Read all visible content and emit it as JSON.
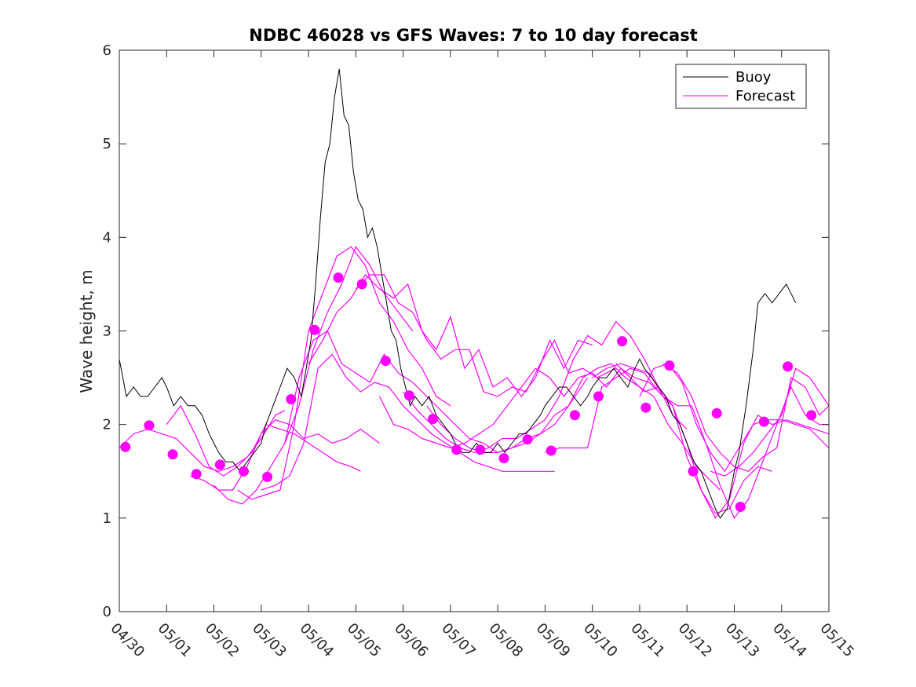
{
  "chart_data": {
    "type": "line",
    "title": "NDBC 46028 vs GFS Waves: 7 to 10 day forecast",
    "xlabel": "",
    "ylabel": "Wave height, m",
    "xlim": [
      0,
      15
    ],
    "ylim": [
      0,
      6
    ],
    "x_ticks": [
      "04/30",
      "05/01",
      "05/02",
      "05/03",
      "05/04",
      "05/05",
      "05/06",
      "05/07",
      "05/08",
      "05/09",
      "05/10",
      "05/11",
      "05/12",
      "05/13",
      "05/14",
      "05/15"
    ],
    "y_ticks": [
      0,
      1,
      2,
      3,
      4,
      5,
      6
    ],
    "x_unit": "days after 04/30 00:00",
    "grid": false,
    "legend": {
      "placement": "top-right",
      "entries": [
        "Buoy",
        "Forecast"
      ]
    },
    "colors": {
      "buoy": "#000000",
      "forecast": "#ff00ff"
    },
    "buoy": {
      "name": "Buoy",
      "x": [
        0,
        0.15,
        0.3,
        0.45,
        0.6,
        0.75,
        0.9,
        1.0,
        1.15,
        1.3,
        1.45,
        1.6,
        1.75,
        1.9,
        2.0,
        2.1,
        2.25,
        2.4,
        2.55,
        2.7,
        2.85,
        3.0,
        3.1,
        3.25,
        3.4,
        3.55,
        3.7,
        3.85,
        3.95,
        4.05,
        4.15,
        4.25,
        4.35,
        4.45,
        4.55,
        4.65,
        4.75,
        4.85,
        4.95,
        5.05,
        5.15,
        5.25,
        5.35,
        5.45,
        5.55,
        5.65,
        5.75,
        5.85,
        5.95,
        6.05,
        6.15,
        6.25,
        6.4,
        6.55,
        6.7,
        6.85,
        7.0,
        7.1,
        7.25,
        7.4,
        7.55,
        7.7,
        7.85,
        8.0,
        8.15,
        8.3,
        8.45,
        8.6,
        8.75,
        8.9,
        9.0,
        9.15,
        9.3,
        9.45,
        9.6,
        9.75,
        9.9,
        10.0,
        10.15,
        10.3,
        10.45,
        10.6,
        10.75,
        10.9,
        11.0,
        11.1,
        11.25,
        11.4,
        11.55,
        11.7,
        11.85,
        12.0,
        12.15,
        12.3,
        12.45,
        12.6,
        12.7,
        12.85,
        13.0,
        13.1,
        13.25,
        13.4,
        13.5,
        13.65,
        13.8,
        13.95,
        14.1,
        14.2,
        14.3
      ],
      "y": [
        2.7,
        2.3,
        2.4,
        2.3,
        2.3,
        2.4,
        2.5,
        2.4,
        2.2,
        2.3,
        2.2,
        2.2,
        2.1,
        1.9,
        1.8,
        1.7,
        1.6,
        1.6,
        1.5,
        1.6,
        1.7,
        1.8,
        2.0,
        2.2,
        2.4,
        2.6,
        2.5,
        2.3,
        2.6,
        2.9,
        3.5,
        4.2,
        4.8,
        5.0,
        5.5,
        5.8,
        5.3,
        5.2,
        4.7,
        4.4,
        4.3,
        4.0,
        4.1,
        3.9,
        3.6,
        3.3,
        3.0,
        2.9,
        2.6,
        2.4,
        2.2,
        2.3,
        2.2,
        2.3,
        2.1,
        2.0,
        1.9,
        1.8,
        1.7,
        1.7,
        1.8,
        1.7,
        1.7,
        1.8,
        1.7,
        1.8,
        1.9,
        1.9,
        2.0,
        2.1,
        2.2,
        2.3,
        2.4,
        2.4,
        2.3,
        2.2,
        2.3,
        2.4,
        2.5,
        2.5,
        2.6,
        2.5,
        2.4,
        2.6,
        2.7,
        2.6,
        2.5,
        2.4,
        2.3,
        2.1,
        2.0,
        1.8,
        1.6,
        1.5,
        1.3,
        1.1,
        1.0,
        1.1,
        1.5,
        1.7,
        2.2,
        2.8,
        3.3,
        3.4,
        3.3,
        3.4,
        3.5,
        3.4,
        3.3
      ]
    },
    "forecast_series": [
      {
        "x": [
          0,
          0.3,
          0.6,
          0.9,
          1.2,
          1.5,
          1.8,
          2.1,
          2.4,
          2.7,
          3.0,
          3.3,
          3.5
        ],
        "y": [
          1.75,
          1.9,
          1.95,
          1.9,
          1.85,
          1.7,
          1.55,
          1.5,
          1.55,
          1.65,
          1.85,
          2.1,
          2.15
        ]
      },
      {
        "x": [
          1.0,
          1.3,
          1.6,
          1.9,
          2.2,
          2.5,
          2.8,
          3.1,
          3.4,
          3.7,
          4.0,
          4.3,
          4.6,
          4.9,
          5.1
        ],
        "y": [
          2.0,
          2.2,
          1.9,
          1.55,
          1.45,
          1.55,
          1.7,
          2.0,
          1.95,
          1.9,
          1.8,
          1.7,
          1.6,
          1.55,
          1.5
        ]
      },
      {
        "x": [
          1.5,
          1.8,
          2.1,
          2.4,
          2.7,
          3.0,
          3.3,
          3.6,
          3.9,
          4.2,
          4.5,
          4.8,
          5.1,
          5.5
        ],
        "y": [
          1.45,
          1.4,
          1.3,
          1.3,
          1.55,
          1.9,
          2.05,
          2.0,
          1.85,
          1.9,
          1.8,
          1.85,
          1.95,
          1.8
        ]
      },
      {
        "x": [
          2.0,
          2.3,
          2.6,
          2.9,
          3.2,
          3.5,
          3.8,
          4.1,
          4.4,
          4.7,
          5.0,
          5.3,
          5.6,
          5.9,
          6.2
        ],
        "y": [
          1.35,
          1.2,
          1.15,
          1.3,
          1.55,
          1.8,
          2.2,
          2.8,
          3.2,
          3.5,
          3.9,
          3.7,
          3.4,
          3.2,
          3.0
        ]
      },
      {
        "x": [
          2.5,
          2.8,
          3.1,
          3.4,
          3.7,
          4.0,
          4.3,
          4.6,
          4.9,
          5.2,
          5.5,
          5.8,
          6.1,
          6.4,
          6.7,
          7.0
        ],
        "y": [
          1.3,
          1.2,
          1.25,
          1.3,
          2.0,
          3.0,
          3.4,
          3.8,
          3.9,
          3.7,
          3.3,
          3.1,
          2.8,
          2.6,
          2.3,
          2.2
        ]
      },
      {
        "x": [
          3.0,
          3.3,
          3.6,
          3.9,
          4.2,
          4.5,
          4.8,
          5.1,
          5.4,
          5.7,
          6.0,
          6.3,
          6.6,
          6.9,
          7.2,
          7.5,
          7.8,
          8.1,
          8.5,
          8.9,
          9.2
        ],
        "y": [
          1.3,
          1.35,
          1.45,
          1.8,
          2.6,
          2.75,
          2.5,
          2.35,
          2.45,
          2.4,
          2.2,
          2.05,
          1.9,
          1.8,
          1.7,
          1.6,
          1.55,
          1.5,
          1.5,
          1.5,
          1.5
        ]
      },
      {
        "x": [
          3.5,
          3.8,
          4.1,
          4.4,
          4.7,
          5.0,
          5.3,
          5.6,
          5.9,
          6.2,
          6.5,
          6.8,
          7.1,
          7.4,
          7.7,
          8.0,
          8.3,
          8.6,
          8.9,
          9.2,
          9.5,
          9.9
        ],
        "y": [
          1.8,
          2.5,
          2.9,
          3.0,
          2.65,
          2.55,
          2.45,
          2.75,
          2.55,
          2.45,
          2.3,
          2.15,
          2.0,
          1.85,
          1.8,
          1.7,
          1.75,
          1.85,
          1.9,
          2.0,
          2.2,
          2.5
        ]
      },
      {
        "x": [
          4.0,
          4.3,
          4.6,
          4.9,
          5.2,
          5.5,
          5.8,
          6.1,
          6.4,
          6.7,
          7.0,
          7.3,
          7.6,
          7.9,
          8.2,
          8.5,
          8.8,
          9.1,
          9.4,
          9.7,
          10.0
        ],
        "y": [
          2.65,
          2.9,
          3.2,
          3.35,
          3.6,
          3.45,
          3.35,
          3.5,
          3.0,
          2.8,
          3.15,
          2.6,
          2.8,
          2.4,
          2.5,
          2.3,
          2.5,
          2.9,
          2.6,
          2.9,
          2.85
        ]
      },
      {
        "x": [
          5.0,
          5.3,
          5.6,
          5.9,
          6.2,
          6.5,
          6.8,
          7.1,
          7.4,
          7.7,
          8.0,
          8.3,
          8.6,
          8.9,
          9.2,
          9.5,
          9.8,
          10.1,
          10.5
        ],
        "y": [
          3.45,
          3.6,
          3.6,
          3.3,
          3.2,
          2.9,
          2.7,
          2.8,
          2.8,
          2.35,
          2.3,
          2.4,
          2.35,
          2.65,
          2.9,
          2.55,
          2.6,
          2.5,
          2.6
        ]
      },
      {
        "x": [
          5.5,
          5.8,
          6.1,
          6.4,
          6.7,
          7.0,
          7.3,
          7.6,
          7.9,
          8.2,
          8.5,
          8.8,
          9.1,
          9.4,
          9.7,
          10.0,
          10.3,
          10.6,
          10.9,
          11.2,
          11.5
        ],
        "y": [
          2.3,
          2.0,
          1.95,
          1.85,
          1.8,
          1.75,
          1.8,
          1.9,
          2.0,
          2.2,
          2.4,
          2.6,
          2.5,
          2.3,
          2.5,
          2.55,
          2.4,
          2.6,
          2.5,
          2.45,
          2.3
        ]
      },
      {
        "x": [
          6.0,
          6.3,
          6.6,
          6.9,
          7.2,
          7.5,
          7.8,
          8.1,
          8.4,
          8.7,
          9.0,
          9.3,
          9.6,
          9.9,
          10.2,
          10.5,
          10.8,
          11.1,
          11.4,
          11.7,
          12.0
        ],
        "y": [
          2.35,
          2.15,
          2.0,
          1.85,
          1.75,
          1.7,
          1.75,
          1.85,
          1.85,
          1.95,
          2.05,
          2.3,
          2.7,
          2.95,
          2.85,
          3.1,
          2.95,
          2.7,
          2.4,
          2.1,
          1.95
        ]
      },
      {
        "x": [
          6.5,
          6.8,
          7.1,
          7.4,
          7.7,
          8.0,
          8.3,
          8.6,
          8.9,
          9.2,
          9.5,
          9.8,
          10.1,
          10.4,
          10.7,
          11.0,
          11.3,
          11.6,
          11.9,
          12.2,
          12.5,
          12.7
        ],
        "y": [
          2.2,
          2.0,
          1.85,
          1.75,
          1.7,
          1.7,
          1.75,
          1.8,
          1.9,
          2.1,
          2.2,
          2.5,
          2.6,
          2.65,
          2.5,
          2.4,
          2.3,
          2.0,
          1.8,
          1.55,
          1.4,
          1.3
        ]
      },
      {
        "x": [
          9.0,
          9.3,
          9.6,
          9.9,
          10.2,
          10.5,
          10.8,
          11.1,
          11.4,
          11.7,
          12.0,
          12.3,
          12.6,
          12.9,
          13.2,
          13.5,
          13.8
        ],
        "y": [
          1.7,
          1.75,
          1.75,
          1.75,
          2.4,
          2.5,
          2.6,
          2.55,
          2.35,
          2.2,
          1.8,
          1.3,
          1.05,
          1.1,
          1.4,
          1.55,
          1.5
        ]
      },
      {
        "x": [
          10.0,
          10.3,
          10.6,
          10.9,
          11.2,
          11.5,
          11.8,
          12.1,
          12.4,
          12.7,
          13.0,
          13.3,
          13.6,
          13.9,
          14.2,
          14.5,
          14.8,
          15.0
        ],
        "y": [
          2.5,
          2.6,
          2.65,
          2.6,
          2.55,
          2.3,
          2.2,
          2.2,
          1.8,
          1.35,
          1.0,
          1.2,
          1.6,
          2.0,
          2.4,
          2.1,
          2.0,
          2.0
        ]
      },
      {
        "x": [
          10.5,
          10.8,
          11.1,
          11.4,
          11.7,
          12.0,
          12.3,
          12.6,
          12.9,
          13.2,
          13.5,
          13.8,
          14.1,
          14.4,
          14.7,
          15.0
        ],
        "y": [
          2.65,
          2.5,
          2.35,
          2.4,
          2.2,
          1.65,
          1.3,
          1.0,
          1.2,
          1.8,
          2.1,
          2.0,
          2.05,
          2.0,
          1.95,
          1.9
        ]
      },
      {
        "x": [
          11.0,
          11.3,
          11.6,
          11.9,
          12.2,
          12.5,
          12.8,
          13.1,
          13.4,
          13.7,
          14.0,
          14.3,
          14.6,
          15.0
        ],
        "y": [
          2.3,
          2.6,
          2.65,
          2.45,
          2.0,
          1.7,
          1.5,
          1.75,
          2.0,
          2.05,
          2.05,
          2.0,
          1.95,
          1.75
        ]
      },
      {
        "x": [
          11.5,
          11.8,
          12.1,
          12.4,
          12.7,
          13.0,
          13.3,
          13.6,
          13.9,
          14.2,
          14.5,
          14.8,
          15.0
        ],
        "y": [
          2.65,
          2.55,
          2.3,
          1.9,
          1.7,
          1.55,
          1.5,
          1.65,
          1.75,
          2.5,
          2.4,
          2.1,
          2.2
        ]
      },
      {
        "x": [
          12.5,
          12.8,
          13.1,
          13.4,
          13.7,
          14.0,
          14.3,
          14.6,
          15.0
        ],
        "y": [
          1.5,
          1.45,
          1.55,
          1.7,
          1.9,
          2.1,
          2.6,
          2.5,
          2.2
        ]
      }
    ],
    "forecast_points": {
      "name": "Forecast",
      "x": [
        0.13,
        0.63,
        1.13,
        1.63,
        2.13,
        2.63,
        3.13,
        3.63,
        4.13,
        4.63,
        5.13,
        5.63,
        6.13,
        6.63,
        7.13,
        7.63,
        8.13,
        8.63,
        9.13,
        9.63,
        10.13,
        10.63,
        11.13,
        11.63,
        12.13,
        12.63,
        13.13,
        13.63,
        14.13,
        14.63
      ],
      "y": [
        1.76,
        1.99,
        1.68,
        1.47,
        1.57,
        1.5,
        1.44,
        2.27,
        3.01,
        3.57,
        3.5,
        2.68,
        2.31,
        2.06,
        1.73,
        1.73,
        1.64,
        1.84,
        1.72,
        2.1,
        2.3,
        2.89,
        2.18,
        2.63,
        1.5,
        2.12,
        1.12,
        2.03,
        2.62,
        2.1
      ]
    }
  }
}
